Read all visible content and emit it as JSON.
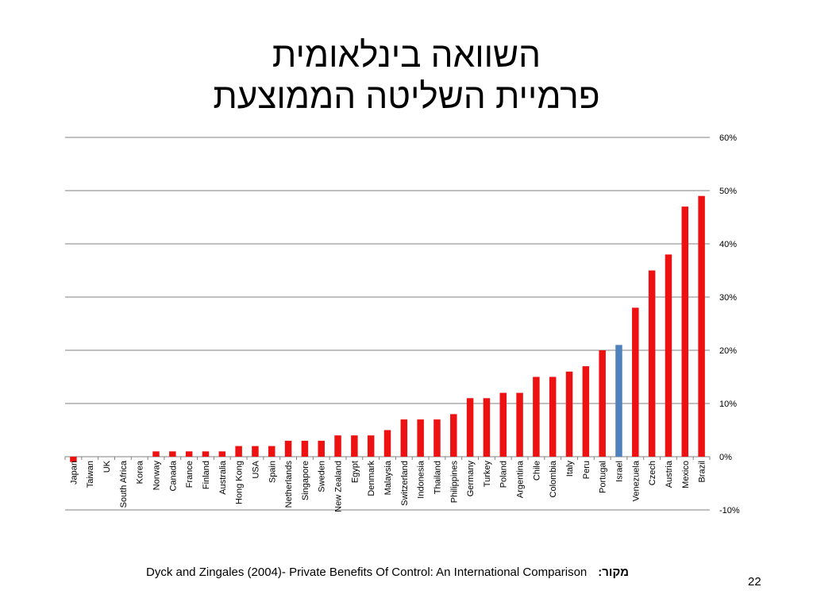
{
  "slide": {
    "title_line1": "השוואה בינלאומית",
    "title_line2": "פרמיית השליטה הממוצעת",
    "source_label": "מקור:",
    "source_text": "Dyck and Zingales (2004)- Private Benefits Of Control: An International Comparison",
    "page_number": "22"
  },
  "colors": {
    "bar": "#ee1111",
    "highlight": "#4f81bd",
    "grid": "#808080"
  },
  "chart_data": {
    "type": "bar",
    "title": "",
    "xlabel": "",
    "ylabel": "",
    "ylim": [
      -0.1,
      0.6
    ],
    "yticks": [
      {
        "value": 0.6,
        "label": "60%"
      },
      {
        "value": 0.5,
        "label": "50%"
      },
      {
        "value": 0.4,
        "label": "40%"
      },
      {
        "value": 0.3,
        "label": "30%"
      },
      {
        "value": 0.2,
        "label": "20%"
      },
      {
        "value": 0.1,
        "label": "10%"
      },
      {
        "value": 0.0,
        "label": "0%"
      },
      {
        "value": -0.1,
        "label": "-10%"
      }
    ],
    "y_axis_position": "right",
    "grid": true,
    "highlight_category": "Israel",
    "categories": [
      "Japan",
      "Taiwan",
      "UK",
      "South Africa",
      "Korea",
      "Norway",
      "Canada",
      "France",
      "Finland",
      "Australia",
      "Hong Kong",
      "USA",
      "Spain",
      "Netherlands",
      "Singapore",
      "Sweden",
      "New Zealand",
      "Egypt",
      "Denmark",
      "Malaysia",
      "Switzerland",
      "Indonesia",
      "Thailand",
      "Philippines",
      "Germany",
      "Turkey",
      "Poland",
      "Argentina",
      "Chile",
      "Colombia",
      "Italy",
      "Peru",
      "Portugal",
      "Israel",
      "Venezuela",
      "Czech",
      "Austria",
      "Mexico",
      "Brazil"
    ],
    "values": [
      -0.01,
      0.0,
      0.0,
      0.0,
      0.0,
      0.01,
      0.01,
      0.01,
      0.01,
      0.01,
      0.02,
      0.02,
      0.02,
      0.03,
      0.03,
      0.03,
      0.04,
      0.04,
      0.04,
      0.05,
      0.07,
      0.07,
      0.07,
      0.08,
      0.11,
      0.11,
      0.12,
      0.12,
      0.15,
      0.15,
      0.16,
      0.17,
      0.2,
      0.21,
      0.28,
      0.35,
      0.38,
      0.47,
      0.49
    ]
  }
}
